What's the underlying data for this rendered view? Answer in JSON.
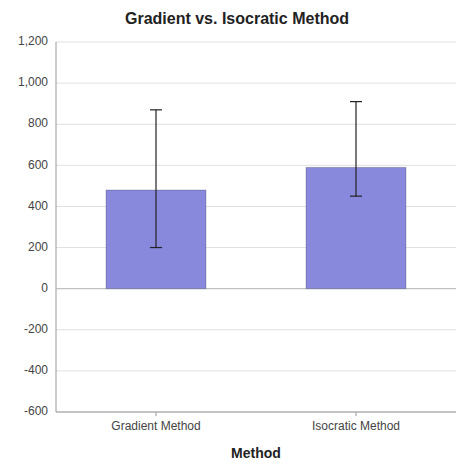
{
  "chart_data": {
    "type": "bar",
    "title": "Gradient vs. Isocratic Method",
    "xlabel": "Method",
    "categories": [
      "Gradient Method",
      "Isocratic Method"
    ],
    "values": [
      480,
      590
    ],
    "errors_upper": [
      390,
      320
    ],
    "errors_lower": [
      280,
      140
    ],
    "color": "#8888dd",
    "ylim": [
      -600,
      1200
    ],
    "yticks": [
      -600,
      -400,
      -200,
      0,
      200,
      400,
      600,
      800,
      {
        "value": 1000,
        "label": "1,000"
      },
      {
        "value": 1200,
        "label": "1,200"
      }
    ],
    "grid": true
  }
}
